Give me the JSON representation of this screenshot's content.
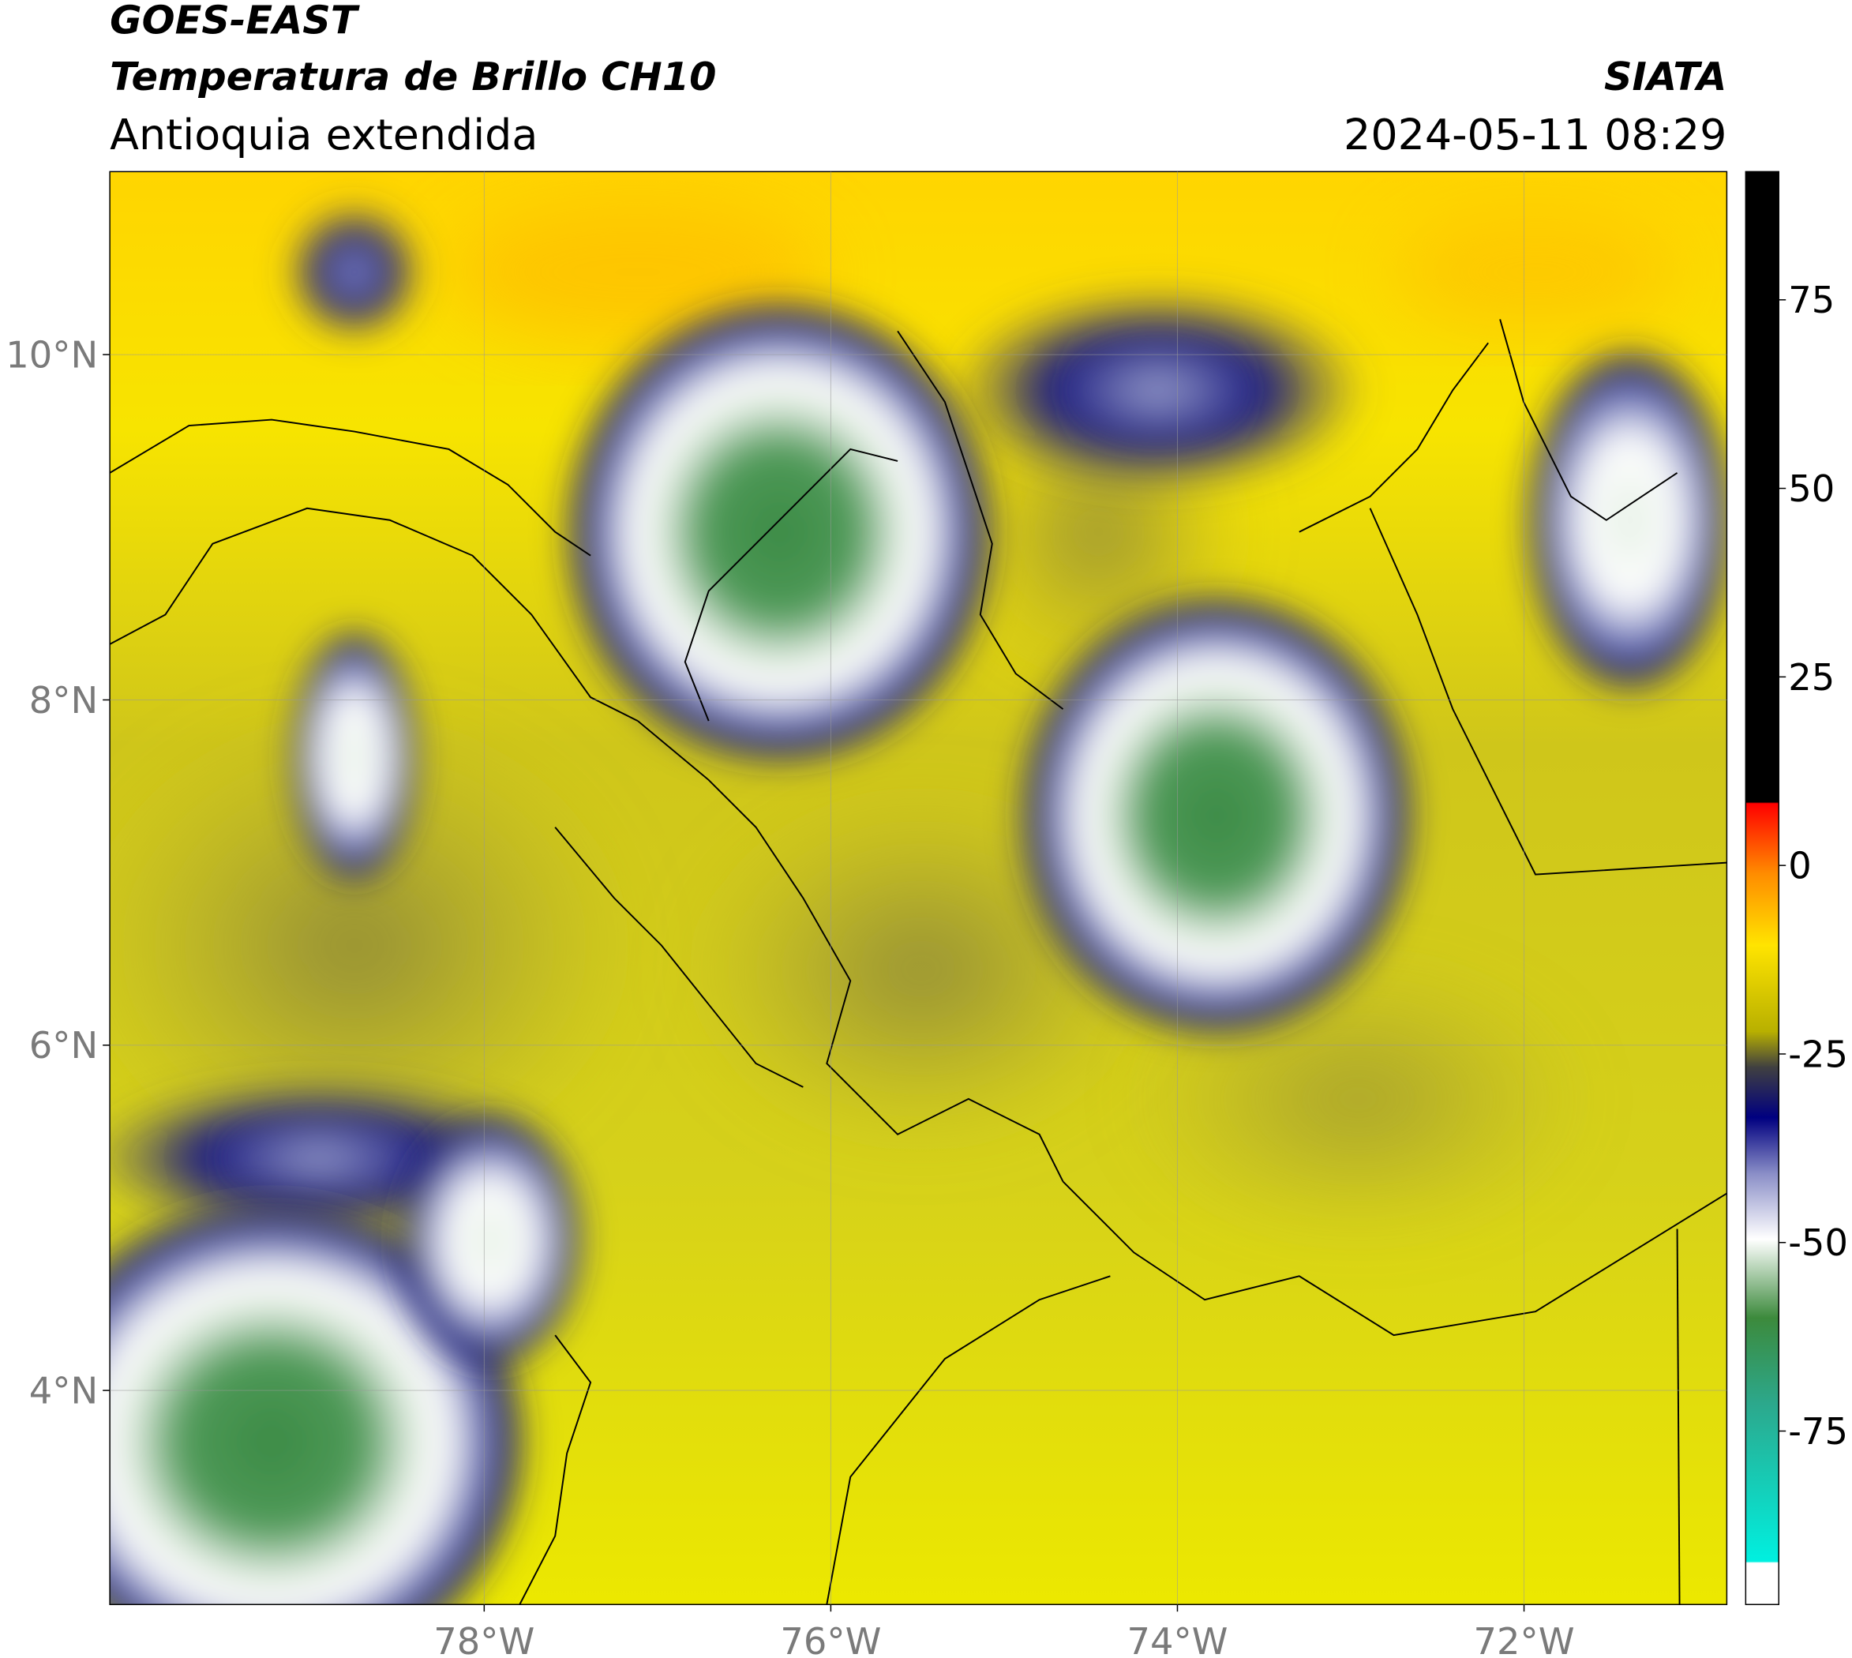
{
  "header": {
    "title_line1": "GOES-EAST",
    "title_line2": "Temperatura de Brillo CH10",
    "subtitle": "Antioquia extendida",
    "source": "SIATA",
    "datetime": "2024-05-11 08:29"
  },
  "map": {
    "xlim": [
      -80.16,
      -70.83
    ],
    "ylim": [
      2.76,
      11.06
    ],
    "xticks": [
      {
        "value": -78,
        "label": "78°W"
      },
      {
        "value": -76,
        "label": "76°W"
      },
      {
        "value": -74,
        "label": "74°W"
      },
      {
        "value": -72,
        "label": "72°W"
      }
    ],
    "yticks": [
      {
        "value": 4,
        "label": "4°N"
      },
      {
        "value": 6,
        "label": "6°N"
      },
      {
        "value": 8,
        "label": "8°N"
      },
      {
        "value": 10,
        "label": "10°N"
      }
    ]
  },
  "colorbar": {
    "lim": [
      -98,
      92
    ],
    "ticks": [
      -75,
      -50,
      -25,
      0,
      25,
      50,
      75
    ]
  }
}
